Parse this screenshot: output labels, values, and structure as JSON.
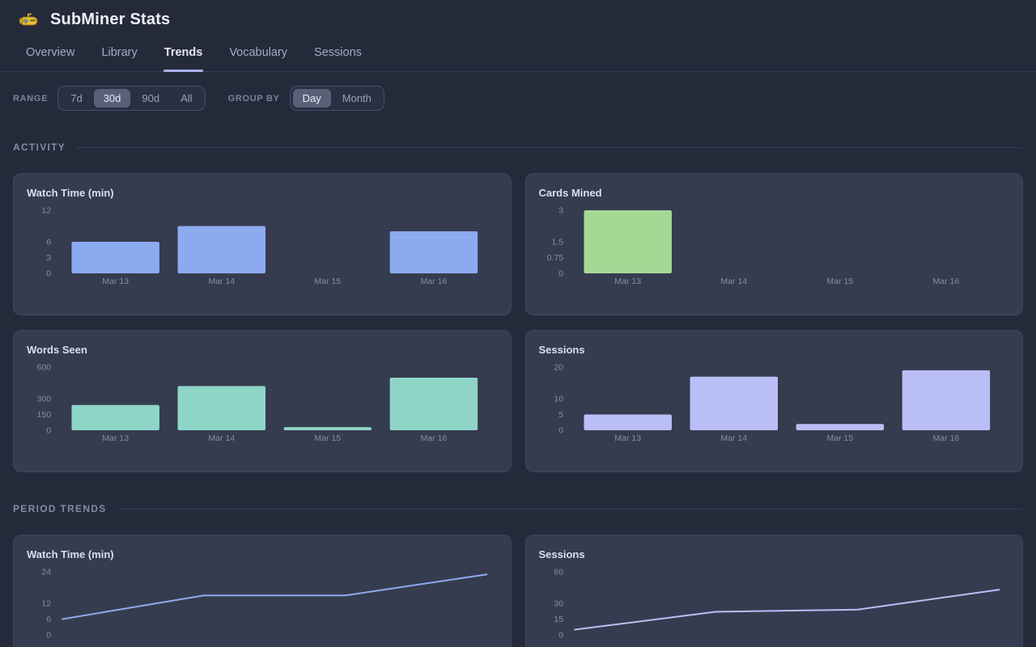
{
  "app": {
    "title": "SubMiner Stats",
    "logo_icon": "submarine-icon"
  },
  "tabs": [
    {
      "label": "Overview",
      "active": false
    },
    {
      "label": "Library",
      "active": false
    },
    {
      "label": "Trends",
      "active": true
    },
    {
      "label": "Vocabulary",
      "active": false
    },
    {
      "label": "Sessions",
      "active": false
    }
  ],
  "controls": {
    "range": {
      "label": "RANGE",
      "options": [
        "7d",
        "30d",
        "90d",
        "All"
      ],
      "selected": "30d"
    },
    "group_by": {
      "label": "GROUP BY",
      "options": [
        "Day",
        "Month"
      ],
      "selected": "Day"
    }
  },
  "sections": [
    {
      "title": "ACTIVITY"
    },
    {
      "title": "PERIOD TRENDS"
    }
  ],
  "colors": {
    "page_bg": "#252a3b",
    "card_bg": "#363c4f",
    "accent_underline": "#a9b1ea",
    "bar_blue": "#8caaf0",
    "bar_green": "#a5d895",
    "bar_teal": "#8ed5c8",
    "bar_lavender": "#b9bff6"
  },
  "chart_data": [
    {
      "type": "bar",
      "section": "ACTIVITY",
      "title": "Watch Time (min)",
      "categories": [
        "Mar 13",
        "Mar 14",
        "Mar 15",
        "Mar 16"
      ],
      "values": [
        6,
        9,
        0,
        8
      ],
      "ylim": [
        0,
        12
      ],
      "yticks": [
        12,
        6,
        3,
        0
      ],
      "grid": false,
      "color": "#8caaf0"
    },
    {
      "type": "bar",
      "section": "ACTIVITY",
      "title": "Cards Mined",
      "categories": [
        "Mar 13",
        "Mar 14",
        "Mar 15",
        "Mar 16"
      ],
      "values": [
        3,
        0,
        0,
        0
      ],
      "ylim": [
        0,
        3
      ],
      "yticks": [
        3,
        1.5,
        0.75,
        0
      ],
      "grid": false,
      "color": "#a5d895"
    },
    {
      "type": "bar",
      "section": "ACTIVITY",
      "title": "Words Seen",
      "categories": [
        "Mar 13",
        "Mar 14",
        "Mar 15",
        "Mar 16"
      ],
      "values": [
        240,
        420,
        30,
        500
      ],
      "ylim": [
        0,
        600
      ],
      "yticks": [
        600,
        300,
        150,
        0
      ],
      "grid": false,
      "color": "#8ed5c8"
    },
    {
      "type": "bar",
      "section": "ACTIVITY",
      "title": "Sessions",
      "categories": [
        "Mar 13",
        "Mar 14",
        "Mar 15",
        "Mar 16"
      ],
      "values": [
        5,
        17,
        2,
        19
      ],
      "ylim": [
        0,
        20
      ],
      "yticks": [
        20,
        10,
        5,
        0
      ],
      "grid": false,
      "color": "#b9bff6"
    },
    {
      "type": "line",
      "section": "PERIOD TRENDS",
      "title": "Watch Time (min)",
      "values": [
        6,
        15,
        15,
        23
      ],
      "ylim": [
        0,
        24
      ],
      "yticks": [
        24,
        12,
        6,
        0
      ],
      "grid": false,
      "color": "#8caaf0"
    },
    {
      "type": "line",
      "section": "PERIOD TRENDS",
      "title": "Sessions",
      "values": [
        5,
        22,
        24,
        43
      ],
      "ylim": [
        0,
        60
      ],
      "yticks": [
        60,
        30,
        15,
        0
      ],
      "grid": false,
      "color": "#b9bff6"
    }
  ]
}
